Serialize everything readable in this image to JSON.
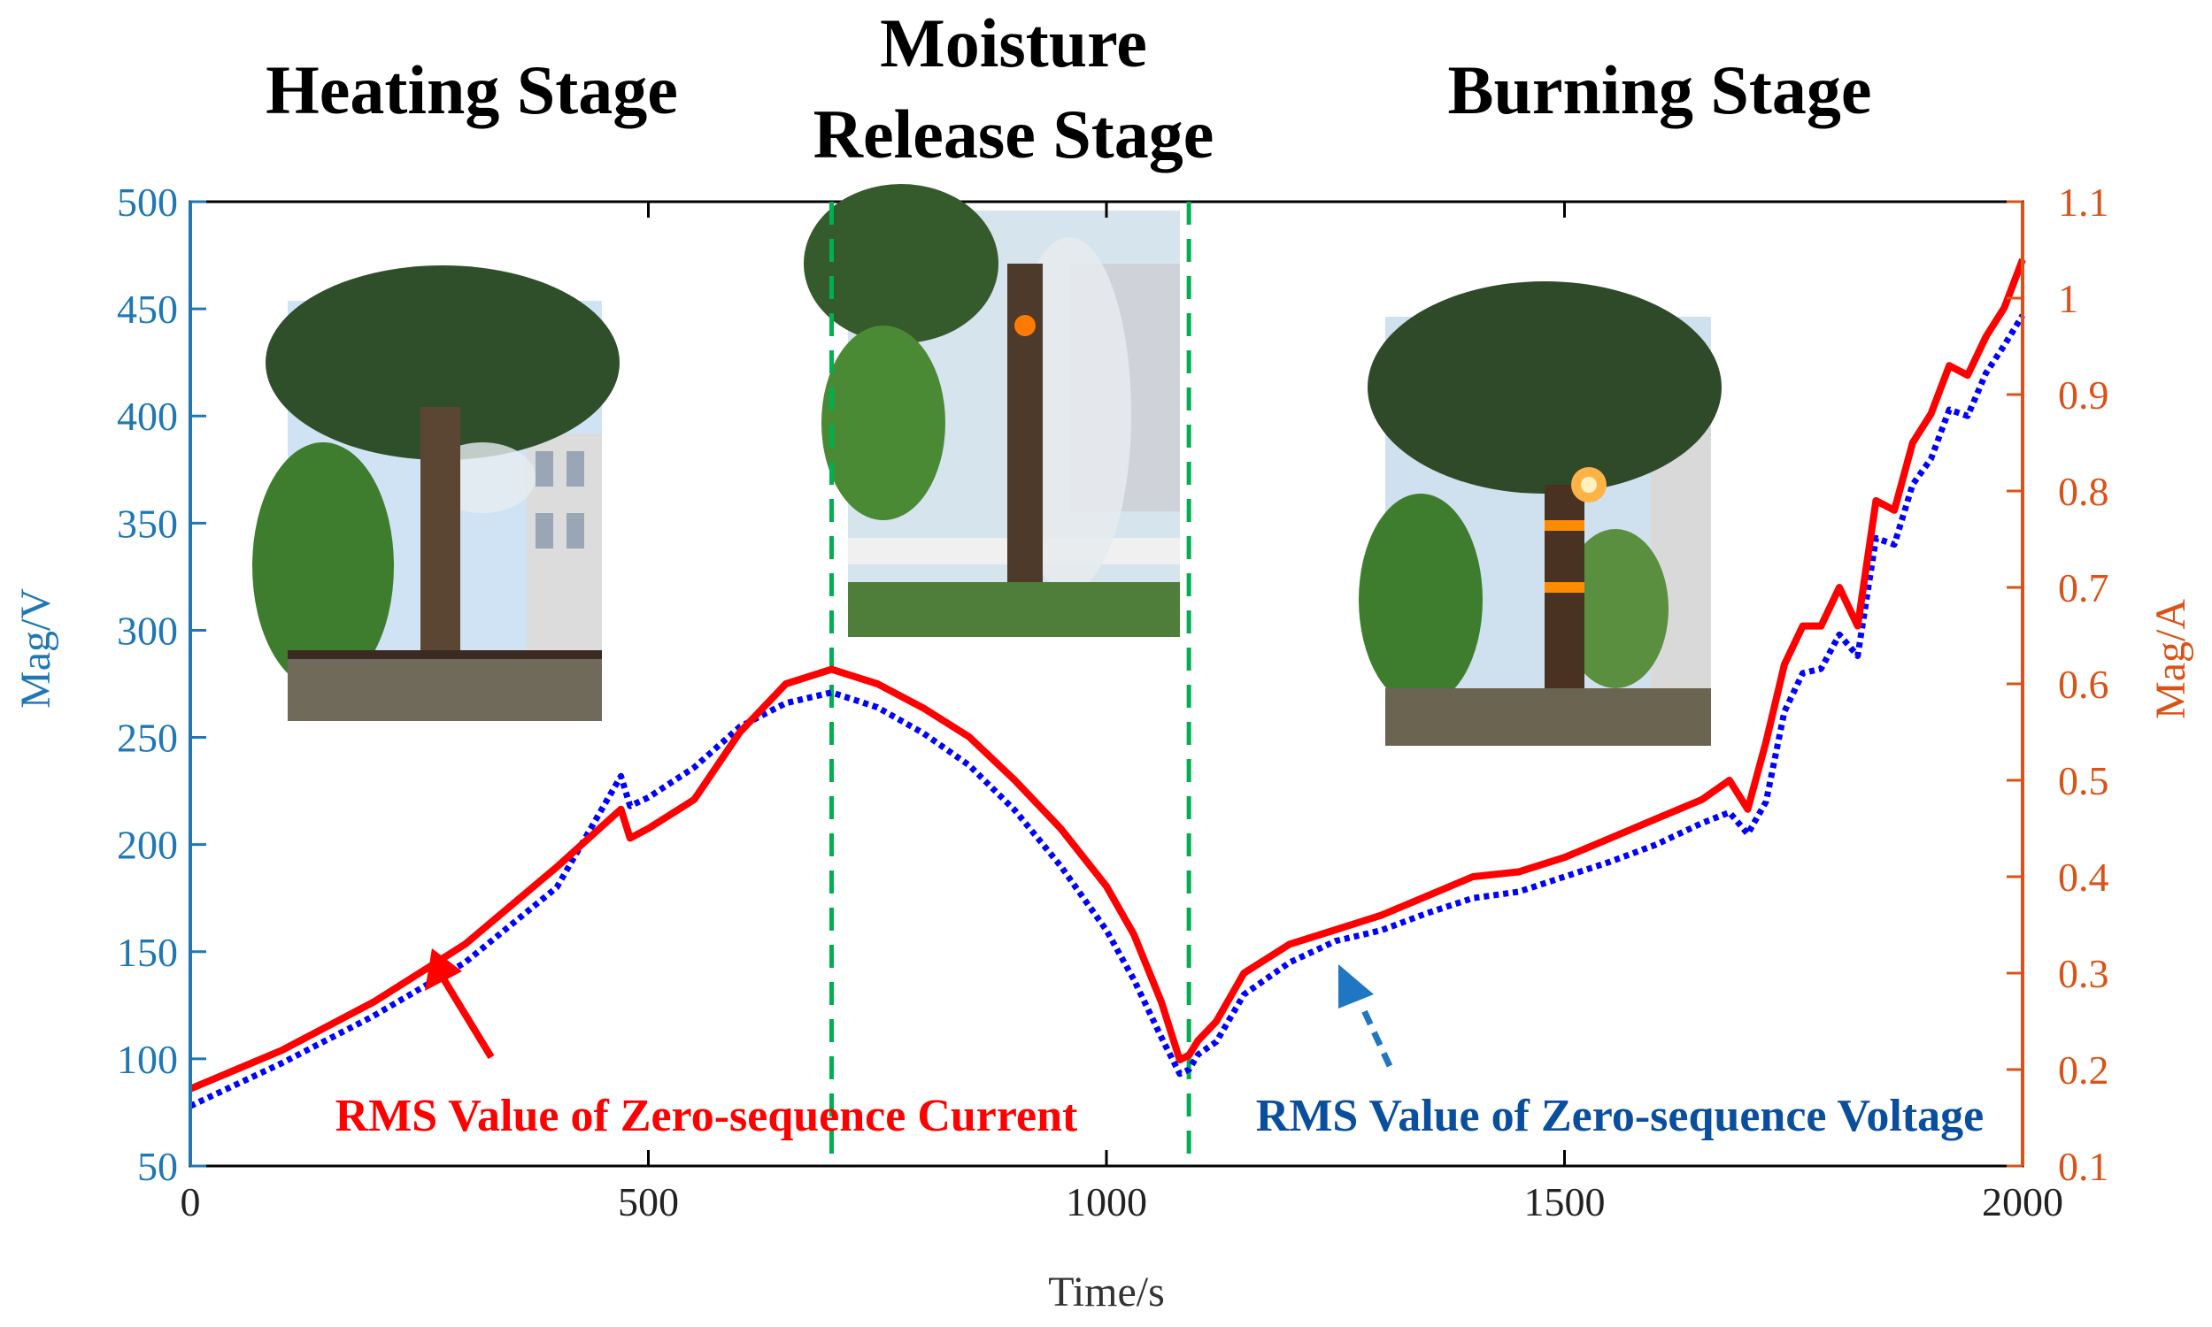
{
  "stage_titles": {
    "heating": "Heating Stage",
    "moisture_line1": "Moisture",
    "moisture_line2": "Release Stage",
    "burning": "Burning Stage"
  },
  "annotations": {
    "current": "RMS Value of Zero-sequence Current",
    "voltage": "RMS Value of Zero-sequence Voltage"
  },
  "colors": {
    "current": "#ff0000",
    "voltage": "#0000ff",
    "left_axis": "#1f77b4",
    "right_axis": "#d95319",
    "divider": "#00b050",
    "voltage_annotation": "#0a4f9e",
    "voltage_arrow": "#1f77c4"
  },
  "photos": [
    {
      "stage": "heating",
      "subject": "tree-smoke-photo"
    },
    {
      "stage": "moisture-release",
      "subject": "tree-steam-photo"
    },
    {
      "stage": "burning",
      "subject": "tree-burning-photo"
    }
  ],
  "chart_data": {
    "type": "line",
    "xlabel": "Time/s",
    "ylabel_left": "Mag/V",
    "ylabel_right": "Mag/A",
    "xlim": [
      0,
      2000
    ],
    "ylim_left": [
      50,
      500
    ],
    "ylim_right": [
      0.1,
      1.1
    ],
    "x_ticks": [
      0,
      500,
      1000,
      1500,
      2000
    ],
    "y_left_ticks": [
      50,
      100,
      150,
      200,
      250,
      300,
      350,
      400,
      450,
      500
    ],
    "y_right_ticks": [
      "0.1",
      "0.2",
      "0.3",
      "0.4",
      "0.5",
      "0.6",
      "0.7",
      "0.8",
      "0.9",
      "1",
      "1.1"
    ],
    "grid": false,
    "stage_dividers": [
      700,
      1090
    ],
    "series": [
      {
        "name": "RMS Value of Zero-sequence Current",
        "axis": "right",
        "style": "solid",
        "x": [
          0,
          100,
          200,
          300,
          400,
          470,
          480,
          500,
          550,
          600,
          650,
          700,
          750,
          800,
          850,
          900,
          950,
          1000,
          1030,
          1060,
          1080,
          1090,
          1100,
          1120,
          1150,
          1200,
          1250,
          1300,
          1350,
          1400,
          1450,
          1500,
          1550,
          1600,
          1650,
          1680,
          1700,
          1720,
          1740,
          1760,
          1780,
          1800,
          1820,
          1840,
          1860,
          1880,
          1900,
          1920,
          1940,
          1960,
          1980,
          2000
        ],
        "values": [
          0.18,
          0.22,
          0.27,
          0.33,
          0.41,
          0.47,
          0.44,
          0.45,
          0.48,
          0.55,
          0.6,
          0.615,
          0.6,
          0.575,
          0.545,
          0.5,
          0.45,
          0.39,
          0.34,
          0.27,
          0.21,
          0.215,
          0.23,
          0.25,
          0.3,
          0.33,
          0.345,
          0.36,
          0.38,
          0.4,
          0.405,
          0.42,
          0.44,
          0.46,
          0.48,
          0.5,
          0.47,
          0.54,
          0.62,
          0.66,
          0.66,
          0.7,
          0.66,
          0.79,
          0.78,
          0.85,
          0.88,
          0.93,
          0.92,
          0.96,
          0.99,
          1.04
        ]
      },
      {
        "name": "RMS Value of Zero-sequence Voltage",
        "axis": "left",
        "style": "dotted",
        "x": [
          0,
          100,
          200,
          300,
          400,
          470,
          480,
          500,
          550,
          600,
          650,
          700,
          750,
          800,
          850,
          900,
          950,
          1000,
          1030,
          1060,
          1080,
          1090,
          1100,
          1120,
          1150,
          1200,
          1250,
          1300,
          1350,
          1400,
          1450,
          1500,
          1550,
          1600,
          1650,
          1680,
          1700,
          1720,
          1740,
          1760,
          1780,
          1800,
          1820,
          1840,
          1860,
          1880,
          1900,
          1920,
          1940,
          1960,
          1980,
          2000
        ],
        "values": [
          78,
          98,
          120,
          145,
          180,
          232,
          218,
          222,
          236,
          255,
          266,
          271,
          264,
          252,
          237,
          216,
          190,
          160,
          137,
          110,
          93,
          95,
          102,
          108,
          130,
          145,
          155,
          160,
          168,
          175,
          178,
          185,
          192,
          200,
          210,
          215,
          205,
          220,
          262,
          280,
          282,
          298,
          288,
          343,
          340,
          368,
          380,
          403,
          400,
          420,
          433,
          447
        ]
      }
    ]
  }
}
